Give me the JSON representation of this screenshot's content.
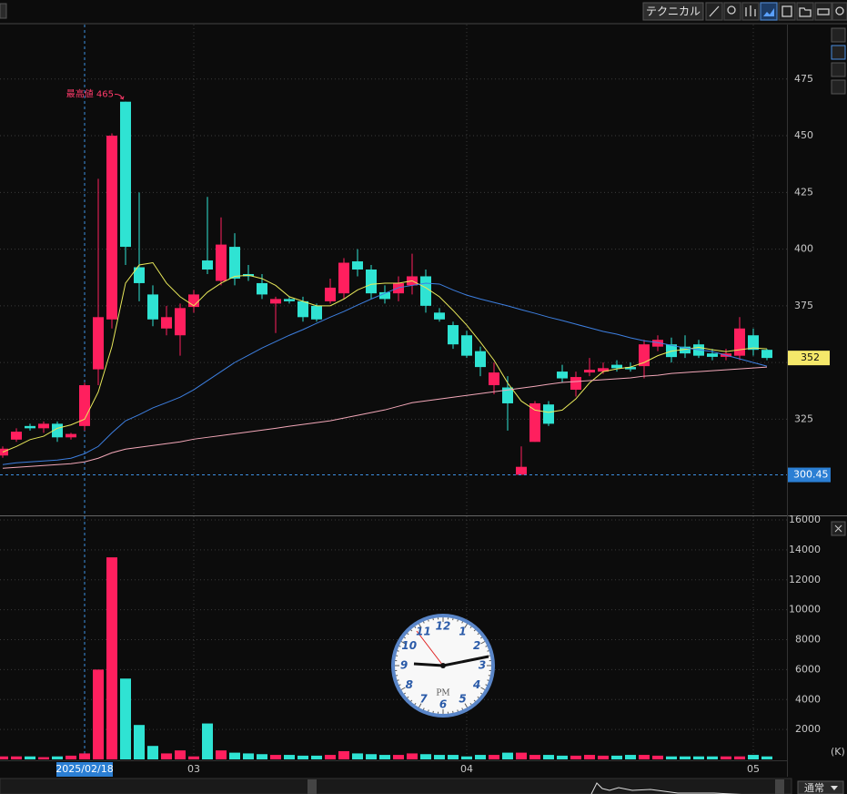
{
  "toolbar": {
    "button": "テクニカル"
  },
  "footer": {
    "mode": "通常"
  },
  "clock": {
    "numerals": [
      "12",
      "1",
      "2",
      "3",
      "4",
      "5",
      "6",
      "7",
      "8",
      "9",
      "10",
      "11"
    ],
    "period": "PM"
  },
  "chart_data": {
    "type": "candlestick",
    "categories": [
      null,
      null,
      null,
      null,
      null,
      null,
      "2025/02/18",
      null,
      null,
      null,
      null,
      null,
      null,
      null,
      "03",
      null,
      null,
      null,
      null,
      null,
      null,
      null,
      null,
      null,
      null,
      null,
      null,
      null,
      null,
      null,
      null,
      null,
      null,
      null,
      "04",
      null,
      null,
      null,
      null,
      null,
      null,
      null,
      null,
      null,
      null,
      null,
      null,
      null,
      null,
      null,
      null,
      null,
      null,
      null,
      null,
      "05",
      null
    ],
    "open": [
      309,
      316,
      322,
      321,
      323,
      317,
      322,
      347,
      369,
      465,
      392,
      380,
      365,
      362,
      374.5,
      395,
      386,
      401,
      389,
      385,
      376,
      378,
      377,
      375,
      377,
      380.5,
      394.6,
      391,
      381,
      380.5,
      384,
      388,
      372,
      366.5,
      362,
      355,
      340,
      339,
      300.5,
      315,
      331.5,
      346,
      338,
      345.6,
      346,
      349,
      348,
      348.4,
      357,
      358,
      357,
      358,
      354,
      352.5,
      353,
      362,
      355.6
    ],
    "high": [
      313,
      321,
      323,
      324,
      324,
      319,
      341,
      431,
      451,
      465,
      425,
      384,
      375,
      376,
      382,
      423,
      414,
      407,
      393,
      389,
      379,
      379,
      379,
      376,
      387,
      396,
      400,
      393,
      384,
      388,
      398,
      391,
      374,
      368,
      364,
      357,
      350,
      344,
      313,
      333,
      333,
      349,
      346,
      352,
      350,
      351,
      350,
      360,
      362,
      361,
      362,
      360,
      356,
      356,
      370,
      365,
      356
    ],
    "low": [
      308,
      315,
      320,
      319,
      315,
      316,
      320,
      340,
      365,
      393,
      377,
      366,
      362,
      353,
      372,
      389,
      384,
      384,
      386,
      378,
      363,
      376,
      368,
      368,
      376,
      378,
      388,
      378,
      376,
      377,
      380,
      372,
      368,
      356,
      352,
      344,
      336,
      320,
      300.45,
      315,
      322,
      341,
      335,
      344,
      345,
      346,
      346,
      343,
      355,
      350,
      352,
      352,
      351,
      351,
      351,
      353,
      351
    ],
    "close": [
      312,
      319.5,
      321,
      323,
      317,
      318.5,
      340,
      370,
      450,
      401,
      385,
      369,
      370,
      374,
      380,
      391,
      402,
      387,
      388,
      380,
      378,
      377,
      370,
      369,
      383,
      394,
      391,
      380.5,
      378,
      385,
      388,
      375,
      369,
      358,
      353,
      348,
      345.6,
      332,
      304,
      332,
      323,
      343,
      343.6,
      346.8,
      347.5,
      347.5,
      347,
      358,
      360,
      352.4,
      354,
      353,
      352.5,
      354,
      365,
      355.6,
      352
    ],
    "up_color": "#ff1f5e",
    "down_color": "#2fe3d3",
    "lines": [
      {
        "color": "#e8e85a",
        "values": [
          310.5,
          313,
          316,
          317.5,
          321,
          322.5,
          325,
          337,
          357,
          385,
          393,
          394,
          385,
          379,
          375,
          381,
          385,
          388,
          388.5,
          387,
          384,
          379,
          377,
          375,
          375,
          378,
          382,
          384.5,
          385,
          385,
          386,
          383,
          379,
          373,
          366.5,
          359,
          351,
          341,
          333,
          329,
          328,
          329,
          334,
          341,
          346,
          347.2,
          348,
          350,
          353,
          355,
          355.8,
          356.7,
          355.6,
          354.8,
          355.6,
          356.4,
          356
        ]
      },
      {
        "color": "#3d7fe0",
        "values": [
          305,
          305.8,
          306.2,
          306.6,
          307,
          307.8,
          309.8,
          313,
          319,
          324.3,
          327,
          330,
          332.3,
          334.7,
          338,
          342,
          346,
          350,
          353.2,
          356.4,
          359.2,
          362,
          364.5,
          367.3,
          370,
          372.5,
          375.3,
          378,
          380.5,
          383,
          384,
          385,
          384.6,
          382,
          379.7,
          378,
          376.5,
          375,
          373.3,
          371.7,
          370,
          368.5,
          366.9,
          365.3,
          363.7,
          362.5,
          360.9,
          359.6,
          358.8,
          357.6,
          356.4,
          355.6,
          354.8,
          353.2,
          351.6,
          350,
          348.4
        ]
      },
      {
        "color": "#f2a7b8",
        "values": [
          303.4,
          303.8,
          304.2,
          304.6,
          305,
          305.4,
          306.2,
          307.8,
          310.2,
          311.8,
          312.6,
          313.4,
          314.2,
          315,
          316.2,
          317,
          317.8,
          318.6,
          319.4,
          320.2,
          321,
          321.9,
          322.7,
          323.5,
          324.3,
          325.5,
          326.7,
          327.9,
          329.1,
          330.7,
          332.3,
          333.1,
          333.9,
          334.7,
          335.5,
          336.3,
          337.1,
          337.9,
          338.7,
          339.5,
          340.4,
          341.2,
          341.6,
          342,
          342.4,
          342.8,
          343.2,
          344,
          344.4,
          345.2,
          345.6,
          346,
          346.4,
          346.8,
          347.2,
          347.6,
          348
        ]
      }
    ],
    "ylim": [
      283,
      499
    ],
    "yticks": [
      325,
      350,
      375,
      400,
      425,
      450,
      475
    ],
    "grid": true,
    "annotations": [
      {
        "text": "最高値 465",
        "value": 465
      }
    ],
    "last_price": 352,
    "low_line": 300.45,
    "volume": {
      "values": [
        200,
        200,
        200,
        150,
        200,
        250,
        400,
        6000,
        13500,
        5400,
        2300,
        900,
        400,
        600,
        200,
        2400,
        600,
        450,
        400,
        350,
        300,
        300,
        250,
        250,
        300,
        550,
        400,
        350,
        300,
        300,
        400,
        350,
        300,
        300,
        200,
        300,
        300,
        450,
        450,
        300,
        300,
        250,
        250,
        300,
        250,
        250,
        300,
        300,
        250,
        200,
        200,
        200,
        200,
        200,
        200,
        300,
        200
      ],
      "ylim": [
        0,
        16000
      ],
      "yticks": [
        2000,
        4000,
        6000,
        8000,
        10000,
        12000,
        14000,
        16000
      ],
      "unit": "(K)"
    }
  }
}
